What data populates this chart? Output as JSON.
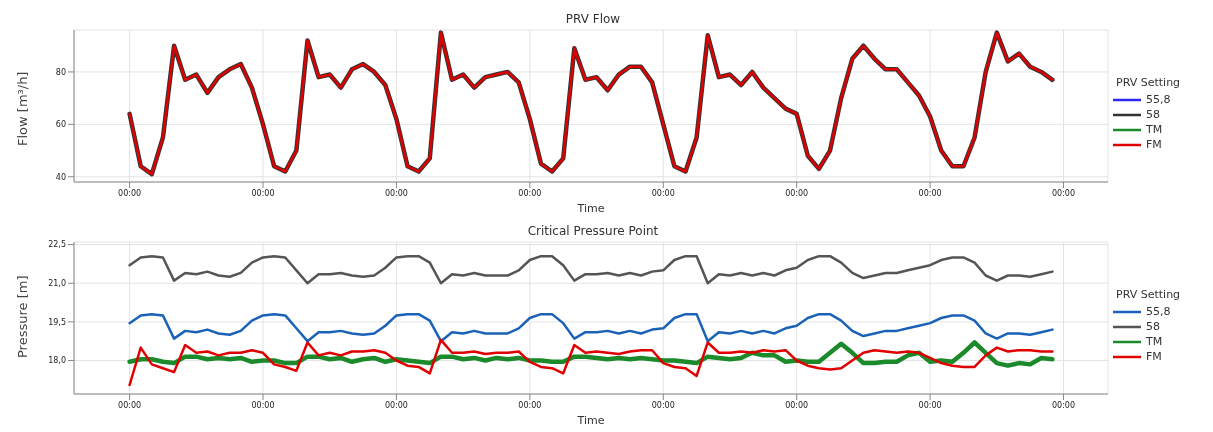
{
  "chart_data": [
    {
      "type": "line",
      "title": "PRV Flow",
      "xlabel": "Time",
      "ylabel": "Flow [m³/h]",
      "legend_title": "PRV Setting",
      "legend": "right",
      "grid": true,
      "x": [
        "--01-02T00:00",
        "--01-02T02:00",
        "--01-02T04:00",
        "--01-02T06:00",
        "--01-02T08:00",
        "--01-02T10:00",
        "--01-02T12:00",
        "--01-02T14:00",
        "--01-02T16:00",
        "--01-02T18:00",
        "--01-02T20:00",
        "--01-02T22:00",
        "--01-03T00:00",
        "--01-03T02:00",
        "--01-03T04:00",
        "--01-03T06:00",
        "--01-03T08:00",
        "--01-03T10:00",
        "--01-03T12:00",
        "--01-03T14:00",
        "--01-03T16:00",
        "--01-03T18:00",
        "--01-03T20:00",
        "--01-03T22:00",
        "--01-04T00:00",
        "--01-04T02:00",
        "--01-04T04:00",
        "--01-04T06:00",
        "--01-04T08:00",
        "--01-04T10:00",
        "--01-04T12:00",
        "--01-04T14:00",
        "--01-04T16:00",
        "--01-04T18:00",
        "--01-04T20:00",
        "--01-04T22:00",
        "--01-05T00:00",
        "--01-05T02:00",
        "--01-05T04:00",
        "--01-05T06:00",
        "--01-05T08:00",
        "--01-05T10:00",
        "--01-05T12:00",
        "--01-05T14:00",
        "--01-05T16:00",
        "--01-05T18:00",
        "--01-05T20:00",
        "--01-05T22:00",
        "--01-06T00:00",
        "--01-06T02:00",
        "--01-06T04:00",
        "--01-06T06:00",
        "--01-06T08:00",
        "--01-06T10:00",
        "--01-06T12:00",
        "--01-06T14:00",
        "--01-06T16:00",
        "--01-06T18:00",
        "--01-06T20:00",
        "--01-06T22:00",
        "--01-07T00:00",
        "--01-07T02:00",
        "--01-07T04:00",
        "--01-07T06:00",
        "--01-07T08:00",
        "--01-07T10:00",
        "--01-07T12:00",
        "--01-07T14:00",
        "--01-07T16:00",
        "--01-07T18:00",
        "--01-07T20:00",
        "--01-07T22:00",
        "--01-08T00:00",
        "--01-08T02:00",
        "--01-08T04:00",
        "--01-08T06:00",
        "--01-08T08:00",
        "--01-08T10:00",
        "--01-08T12:00",
        "--01-08T14:00",
        "--01-08T16:00",
        "--01-08T18:00",
        "--01-08T20:00",
        "--01-08T22:00"
      ],
      "xlim": [
        "--01-01T14:00",
        "--01-09T08:00"
      ],
      "xticks": [
        {
          "value": "--01-02T00:00",
          "label": "00:00"
        },
        {
          "value": "--01-03T00:00",
          "label": "00:00"
        },
        {
          "value": "--01-04T00:00",
          "label": "00:00"
        },
        {
          "value": "--01-05T00:00",
          "label": "00:00"
        },
        {
          "value": "--01-06T00:00",
          "label": "00:00"
        },
        {
          "value": "--01-07T00:00",
          "label": "00:00"
        },
        {
          "value": "--01-08T00:00",
          "label": "00:00"
        },
        {
          "value": "--01-09T00:00",
          "label": "00:00"
        }
      ],
      "ylim": [
        38,
        96
      ],
      "yticks": [
        40,
        60,
        80
      ],
      "series": [
        {
          "name": "55,8",
          "color": "#2a2af0",
          "values": [
            null,
            null,
            null,
            null,
            null,
            null,
            null,
            null,
            null,
            null,
            null,
            null,
            null,
            null,
            null,
            null,
            null,
            null,
            null,
            null,
            null,
            null,
            null,
            null,
            null,
            null,
            null,
            null,
            null,
            null,
            null,
            null,
            null,
            null,
            null,
            null,
            null,
            null,
            null,
            null,
            null,
            null,
            null,
            null,
            null,
            null,
            null,
            null,
            null,
            null,
            null,
            null,
            null,
            null,
            null,
            null,
            null,
            null,
            null,
            null,
            null,
            null,
            null,
            null,
            null,
            null,
            null,
            null,
            null,
            null,
            null,
            null,
            null,
            null,
            null,
            null,
            null,
            null,
            null,
            null,
            null,
            null,
            null,
            null
          ]
        },
        {
          "name": "58",
          "color": "#333333",
          "values": [
            64,
            44,
            41,
            55,
            90,
            77,
            79,
            72,
            78,
            81,
            83,
            74,
            60,
            44,
            42,
            50,
            92,
            78,
            79,
            74,
            81,
            83,
            80,
            75,
            62,
            44,
            42,
            47,
            95,
            77,
            79,
            74,
            78,
            79,
            80,
            76,
            62,
            45,
            42,
            47,
            89,
            77,
            78,
            73,
            79,
            82,
            82,
            76,
            60,
            44,
            42,
            55,
            94,
            78,
            79,
            75,
            80,
            74,
            70,
            66,
            64,
            48,
            43,
            50,
            70,
            85,
            90,
            85,
            81,
            81,
            76,
            71,
            63,
            50,
            44,
            44,
            55,
            80,
            95,
            84,
            87,
            82,
            80,
            77
          ]
        },
        {
          "name": "TM",
          "color": "#1a8a2a",
          "values": [
            null,
            null,
            null,
            null,
            null,
            null,
            null,
            null,
            null,
            null,
            null,
            null,
            null,
            null,
            null,
            null,
            null,
            null,
            null,
            null,
            null,
            null,
            null,
            null,
            null,
            null,
            null,
            null,
            null,
            null,
            null,
            null,
            null,
            null,
            null,
            null,
            null,
            null,
            null,
            null,
            null,
            null,
            null,
            null,
            null,
            null,
            null,
            null,
            null,
            null,
            null,
            null,
            null,
            null,
            null,
            null,
            null,
            null,
            null,
            null,
            null,
            null,
            null,
            null,
            null,
            null,
            null,
            null,
            null,
            null,
            null,
            null,
            null,
            null,
            null,
            null,
            null,
            null,
            null,
            null,
            null,
            null,
            null,
            null
          ]
        },
        {
          "name": "FM",
          "color": "#e00000",
          "values": [
            64,
            44,
            41,
            55,
            90,
            77,
            79,
            72,
            78,
            81,
            83,
            74,
            60,
            44,
            42,
            50,
            92,
            78,
            79,
            74,
            81,
            83,
            80,
            75,
            62,
            44,
            42,
            47,
            95,
            77,
            79,
            74,
            78,
            79,
            80,
            76,
            62,
            45,
            42,
            47,
            89,
            77,
            78,
            73,
            79,
            82,
            82,
            76,
            60,
            44,
            42,
            55,
            94,
            78,
            79,
            75,
            80,
            74,
            70,
            66,
            64,
            48,
            43,
            50,
            70,
            85,
            90,
            85,
            81,
            81,
            76,
            71,
            63,
            50,
            44,
            44,
            55,
            80,
            95,
            84,
            87,
            82,
            80,
            77
          ]
        }
      ]
    },
    {
      "type": "line",
      "title": "Critical Pressure Point",
      "xlabel": "Time",
      "ylabel": "Pressure [m]",
      "legend_title": "PRV Setting",
      "legend": "right",
      "grid": true,
      "x": [
        "--01-02T00:00",
        "--01-02T02:00",
        "--01-02T04:00",
        "--01-02T06:00",
        "--01-02T08:00",
        "--01-02T10:00",
        "--01-02T12:00",
        "--01-02T14:00",
        "--01-02T16:00",
        "--01-02T18:00",
        "--01-02T20:00",
        "--01-02T22:00",
        "--01-03T00:00",
        "--01-03T02:00",
        "--01-03T04:00",
        "--01-03T06:00",
        "--01-03T08:00",
        "--01-03T10:00",
        "--01-03T12:00",
        "--01-03T14:00",
        "--01-03T16:00",
        "--01-03T18:00",
        "--01-03T20:00",
        "--01-03T22:00",
        "--01-04T00:00",
        "--01-04T02:00",
        "--01-04T04:00",
        "--01-04T06:00",
        "--01-04T08:00",
        "--01-04T10:00",
        "--01-04T12:00",
        "--01-04T14:00",
        "--01-04T16:00",
        "--01-04T18:00",
        "--01-04T20:00",
        "--01-04T22:00",
        "--01-05T00:00",
        "--01-05T02:00",
        "--01-05T04:00",
        "--01-05T06:00",
        "--01-05T08:00",
        "--01-05T10:00",
        "--01-05T12:00",
        "--01-05T14:00",
        "--01-05T16:00",
        "--01-05T18:00",
        "--01-05T20:00",
        "--01-05T22:00",
        "--01-06T00:00",
        "--01-06T02:00",
        "--01-06T04:00",
        "--01-06T06:00",
        "--01-06T08:00",
        "--01-06T10:00",
        "--01-06T12:00",
        "--01-06T14:00",
        "--01-06T16:00",
        "--01-06T18:00",
        "--01-06T20:00",
        "--01-06T22:00",
        "--01-07T00:00",
        "--01-07T02:00",
        "--01-07T04:00",
        "--01-07T06:00",
        "--01-07T08:00",
        "--01-07T10:00",
        "--01-07T12:00",
        "--01-07T14:00",
        "--01-07T16:00",
        "--01-07T18:00",
        "--01-07T20:00",
        "--01-07T22:00",
        "--01-08T00:00",
        "--01-08T02:00",
        "--01-08T04:00",
        "--01-08T06:00",
        "--01-08T08:00",
        "--01-08T10:00",
        "--01-08T12:00",
        "--01-08T14:00",
        "--01-08T16:00",
        "--01-08T18:00",
        "--01-08T20:00",
        "--01-08T22:00"
      ],
      "xlim": [
        "--01-01T14:00",
        "--01-09T08:00"
      ],
      "xticks": [
        {
          "value": "--01-02T00:00",
          "label": "00:00"
        },
        {
          "value": "--01-03T00:00",
          "label": "00:00"
        },
        {
          "value": "--01-04T00:00",
          "label": "00:00"
        },
        {
          "value": "--01-05T00:00",
          "label": "00:00"
        },
        {
          "value": "--01-06T00:00",
          "label": "00:00"
        },
        {
          "value": "--01-07T00:00",
          "label": "00:00"
        },
        {
          "value": "--01-08T00:00",
          "label": "00:00"
        },
        {
          "value": "--01-09T00:00",
          "label": "00:00"
        }
      ],
      "ylim": [
        16.7,
        22.6
      ],
      "yticks": [
        {
          "value": 18,
          "label": "18,0"
        },
        {
          "value": 19.5,
          "label": "19,5"
        },
        {
          "value": 21,
          "label": "21,0"
        },
        {
          "value": 22.5,
          "label": "22,5"
        }
      ],
      "series": [
        {
          "name": "55,8",
          "color": "#1a62b8",
          "values": [
            19.45,
            19.75,
            19.8,
            19.75,
            18.85,
            19.15,
            19.1,
            19.2,
            19.05,
            19.0,
            19.15,
            19.55,
            19.75,
            19.8,
            19.75,
            19.25,
            18.75,
            19.1,
            19.1,
            19.15,
            19.05,
            19.0,
            19.05,
            19.35,
            19.75,
            19.8,
            19.8,
            19.55,
            18.75,
            19.1,
            19.05,
            19.15,
            19.05,
            19.05,
            19.05,
            19.25,
            19.65,
            19.8,
            19.8,
            19.45,
            18.85,
            19.1,
            19.1,
            19.15,
            19.05,
            19.15,
            19.05,
            19.2,
            19.25,
            19.65,
            19.8,
            19.8,
            18.75,
            19.1,
            19.05,
            19.15,
            19.05,
            19.15,
            19.05,
            19.25,
            19.35,
            19.65,
            19.8,
            19.8,
            19.55,
            19.15,
            18.95,
            19.05,
            19.15,
            19.15,
            19.25,
            19.35,
            19.45,
            19.65,
            19.75,
            19.75,
            19.55,
            19.05,
            18.85,
            19.05,
            19.05,
            19.0,
            19.1,
            19.2
          ]
        },
        {
          "name": "58",
          "color": "#555555",
          "values": [
            21.7,
            22.0,
            22.05,
            22.0,
            21.1,
            21.4,
            21.35,
            21.45,
            21.3,
            21.25,
            21.4,
            21.8,
            22.0,
            22.05,
            22.0,
            21.5,
            21.0,
            21.35,
            21.35,
            21.4,
            21.3,
            21.25,
            21.3,
            21.6,
            22.0,
            22.05,
            22.05,
            21.8,
            21.0,
            21.35,
            21.3,
            21.4,
            21.3,
            21.3,
            21.3,
            21.5,
            21.9,
            22.05,
            22.05,
            21.7,
            21.1,
            21.35,
            21.35,
            21.4,
            21.3,
            21.4,
            21.3,
            21.45,
            21.5,
            21.9,
            22.05,
            22.05,
            21.0,
            21.35,
            21.3,
            21.4,
            21.3,
            21.4,
            21.3,
            21.5,
            21.6,
            21.9,
            22.05,
            22.05,
            21.8,
            21.4,
            21.2,
            21.3,
            21.4,
            21.4,
            21.5,
            21.6,
            21.7,
            21.9,
            22.0,
            22.0,
            21.8,
            21.3,
            21.1,
            21.3,
            21.3,
            21.25,
            21.35,
            21.45
          ]
        },
        {
          "name": "TM",
          "color": "#1a8a2a",
          "values": [
            17.95,
            18.05,
            18.05,
            17.95,
            17.9,
            18.15,
            18.15,
            18.05,
            18.1,
            18.05,
            18.1,
            17.95,
            18.0,
            18.0,
            17.9,
            17.9,
            18.15,
            18.15,
            18.05,
            18.1,
            17.95,
            18.05,
            18.1,
            17.95,
            18.05,
            18.0,
            17.95,
            17.9,
            18.15,
            18.15,
            18.05,
            18.1,
            18.0,
            18.1,
            18.05,
            18.1,
            18.0,
            18.0,
            17.95,
            17.95,
            18.15,
            18.15,
            18.1,
            18.05,
            18.1,
            18.05,
            18.1,
            18.05,
            18.0,
            18.0,
            17.95,
            17.9,
            18.15,
            18.1,
            18.05,
            18.1,
            18.3,
            18.2,
            18.2,
            17.95,
            18.0,
            17.95,
            17.95,
            18.3,
            18.65,
            18.3,
            17.9,
            17.9,
            17.95,
            17.95,
            18.2,
            18.3,
            17.95,
            18.0,
            17.95,
            18.3,
            18.7,
            18.3,
            17.9,
            17.8,
            17.9,
            17.85,
            18.1,
            18.05
          ]
        },
        {
          "name": "FM",
          "color": "#e00000",
          "values": [
            17.05,
            18.5,
            17.85,
            17.7,
            17.55,
            18.6,
            18.3,
            18.35,
            18.2,
            18.3,
            18.3,
            18.4,
            18.3,
            17.85,
            17.75,
            17.6,
            18.7,
            18.2,
            18.3,
            18.2,
            18.35,
            18.35,
            18.4,
            18.3,
            18.0,
            17.8,
            17.75,
            17.5,
            18.8,
            18.3,
            18.3,
            18.35,
            18.25,
            18.3,
            18.3,
            18.35,
            17.95,
            17.75,
            17.7,
            17.5,
            18.6,
            18.3,
            18.35,
            18.3,
            18.25,
            18.35,
            18.4,
            18.4,
            17.9,
            17.75,
            17.7,
            17.4,
            18.7,
            18.3,
            18.3,
            18.35,
            18.3,
            18.4,
            18.35,
            18.4,
            18.0,
            17.8,
            17.7,
            17.65,
            17.7,
            18.0,
            18.3,
            18.4,
            18.35,
            18.3,
            18.35,
            18.3,
            18.1,
            17.9,
            17.8,
            17.75,
            17.75,
            18.2,
            18.5,
            18.35,
            18.4,
            18.4,
            18.35,
            18.35
          ]
        }
      ]
    }
  ]
}
